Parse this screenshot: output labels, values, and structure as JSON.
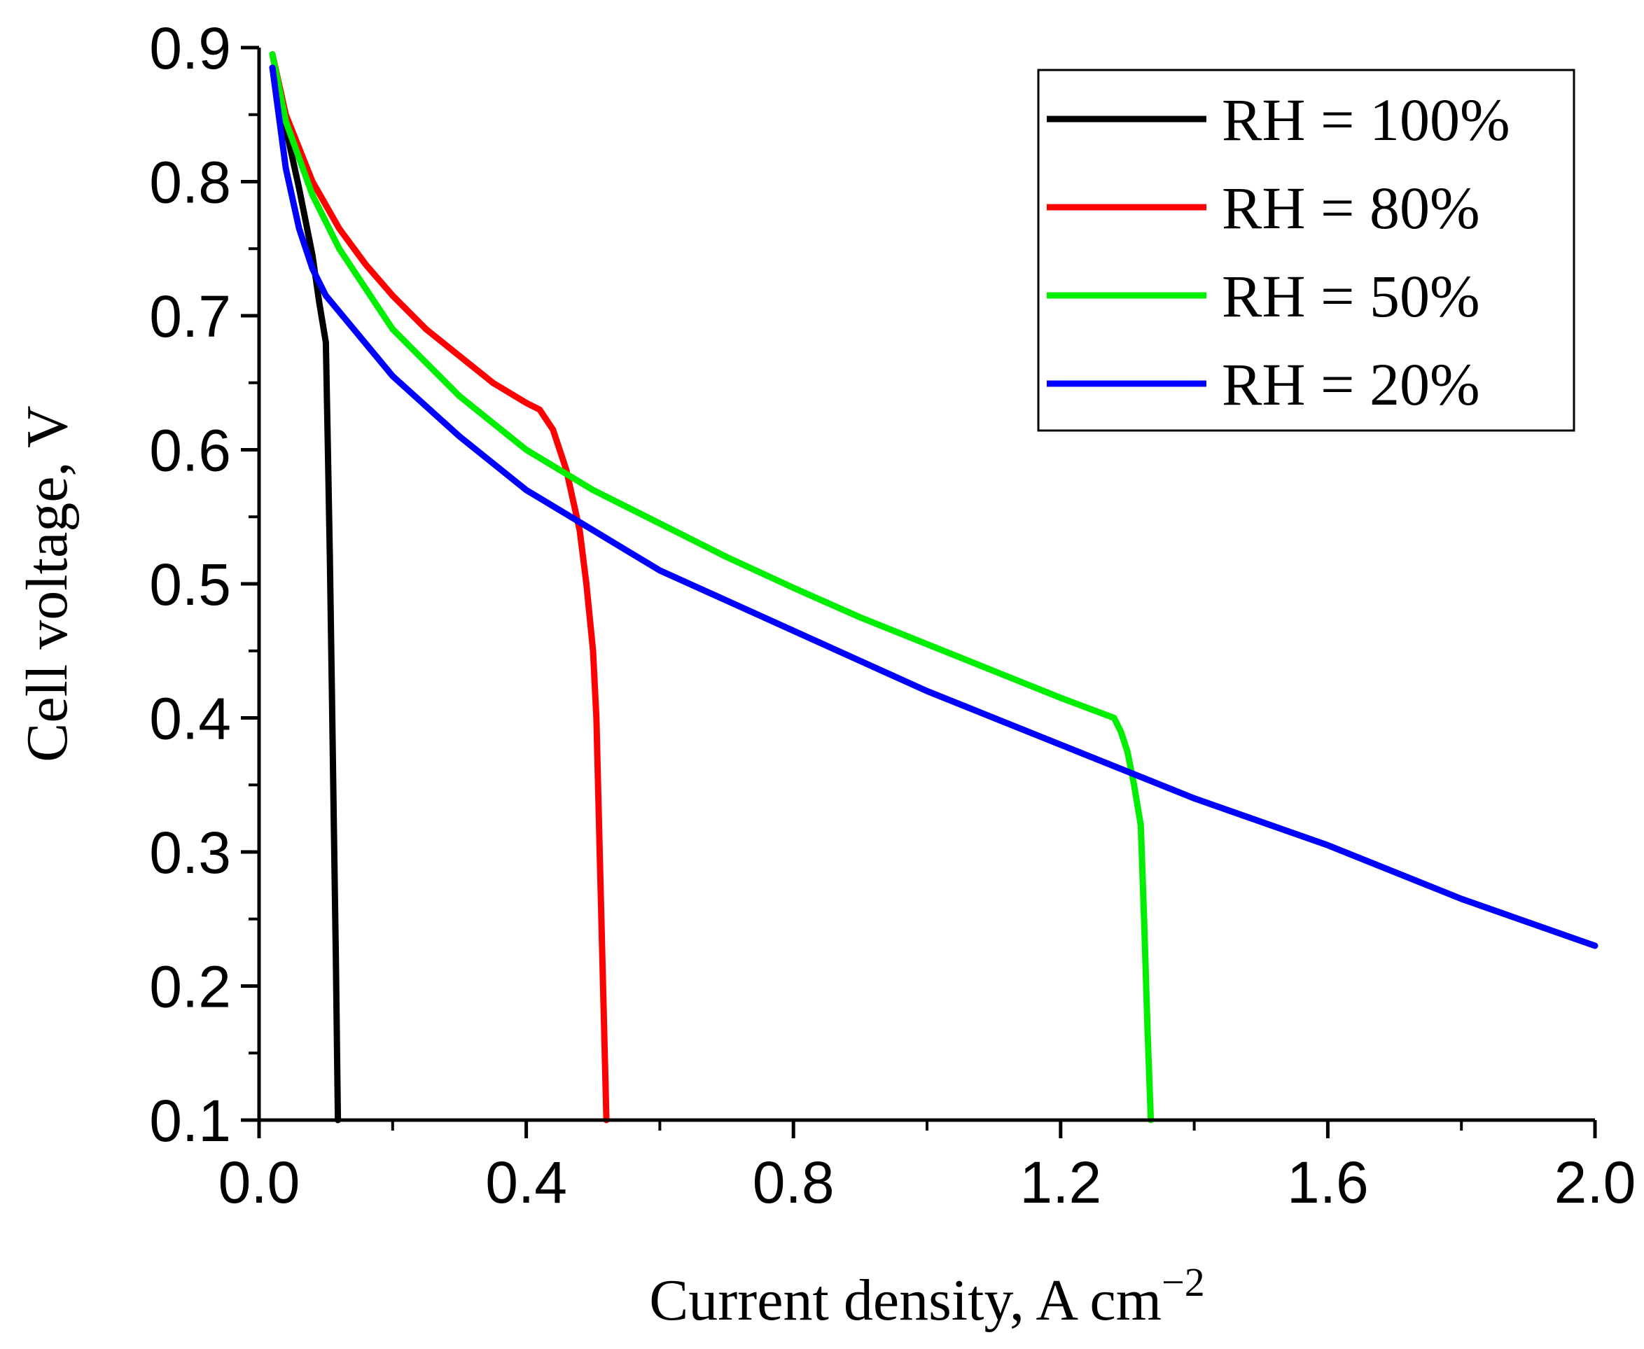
{
  "chart_data": {
    "type": "line",
    "title": "",
    "xlabel": "Current density, A cm",
    "xlabel_superscript": "−2",
    "ylabel": "Cell voltage, V",
    "xlim": [
      0.0,
      2.0
    ],
    "ylim": [
      0.1,
      0.9
    ],
    "x_ticks": [
      "0.0",
      "0.4",
      "0.8",
      "1.2",
      "1.6",
      "2.0"
    ],
    "y_ticks": [
      "0.1",
      "0.2",
      "0.3",
      "0.4",
      "0.5",
      "0.6",
      "0.7",
      "0.8",
      "0.9"
    ],
    "grid": false,
    "legend_position": "top-right",
    "series": [
      {
        "name": "RH = 100%",
        "color": "#000000",
        "x": [
          0.02,
          0.04,
          0.06,
          0.08,
          0.09,
          0.1,
          0.103,
          0.106,
          0.109,
          0.112,
          0.115,
          0.118
        ],
        "y": [
          0.885,
          0.84,
          0.795,
          0.745,
          0.71,
          0.68,
          0.6,
          0.52,
          0.42,
          0.32,
          0.22,
          0.1
        ]
      },
      {
        "name": "RH = 80%",
        "color": "#ff0000",
        "x": [
          0.02,
          0.04,
          0.08,
          0.12,
          0.16,
          0.2,
          0.25,
          0.3,
          0.35,
          0.4,
          0.42,
          0.44,
          0.46,
          0.48,
          0.49,
          0.5,
          0.505,
          0.51,
          0.515,
          0.52
        ],
        "y": [
          0.895,
          0.85,
          0.8,
          0.765,
          0.738,
          0.715,
          0.69,
          0.67,
          0.65,
          0.635,
          0.63,
          0.615,
          0.585,
          0.54,
          0.5,
          0.45,
          0.4,
          0.3,
          0.2,
          0.1
        ]
      },
      {
        "name": "RH = 50%",
        "color": "#00ee00",
        "x": [
          0.02,
          0.04,
          0.08,
          0.12,
          0.16,
          0.2,
          0.3,
          0.4,
          0.5,
          0.6,
          0.7,
          0.8,
          0.9,
          1.0,
          1.1,
          1.2,
          1.28,
          1.29,
          1.3,
          1.31,
          1.32,
          1.325,
          1.33,
          1.335
        ],
        "y": [
          0.895,
          0.845,
          0.79,
          0.75,
          0.72,
          0.69,
          0.64,
          0.6,
          0.57,
          0.545,
          0.52,
          0.497,
          0.475,
          0.455,
          0.435,
          0.415,
          0.4,
          0.39,
          0.375,
          0.35,
          0.32,
          0.25,
          0.17,
          0.1
        ]
      },
      {
        "name": "RH = 20%",
        "color": "#0000ff",
        "x": [
          0.02,
          0.04,
          0.06,
          0.08,
          0.1,
          0.15,
          0.2,
          0.3,
          0.4,
          0.5,
          0.6,
          0.8,
          1.0,
          1.2,
          1.4,
          1.6,
          1.8,
          2.0
        ],
        "y": [
          0.885,
          0.81,
          0.765,
          0.735,
          0.715,
          0.685,
          0.655,
          0.61,
          0.57,
          0.54,
          0.51,
          0.465,
          0.42,
          0.38,
          0.34,
          0.305,
          0.265,
          0.23
        ]
      }
    ]
  }
}
